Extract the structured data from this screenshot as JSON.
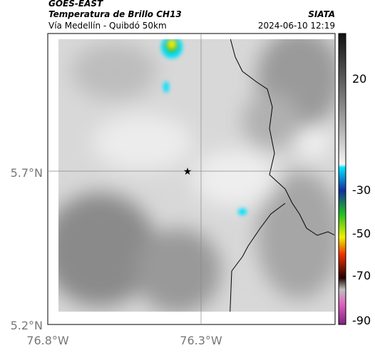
{
  "header": {
    "title": "GOES-EAST",
    "subtitle": "Temperatura de Brillo CH13",
    "route": "Vía Medellín - Quibdó 50km",
    "source": "SIATA",
    "timestamp": "2024-06-10 12:19"
  },
  "map": {
    "lat_labels": [
      "5.7°N",
      "5.2°N"
    ],
    "lon_labels": [
      "76.8°W",
      "76.3°W"
    ]
  },
  "colorbar": {
    "ticks": [
      "20",
      "-30",
      "-50",
      "-70",
      "-90"
    ]
  }
}
